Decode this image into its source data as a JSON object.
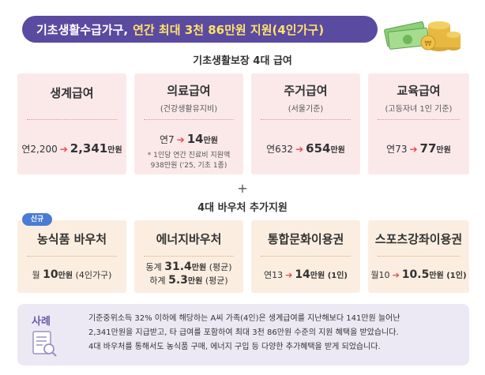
{
  "banner": {
    "title_main": "기초생활수급가구,",
    "title_highlight": "연간 최대 3천 86만원 지원(4인가구)"
  },
  "section1": {
    "title": "기초생활보장 4대 급여"
  },
  "benefits": [
    {
      "title": "생계급여",
      "subtitle": "",
      "from": "연2,200",
      "to": "2,341",
      "unit": "만원",
      "note": ""
    },
    {
      "title": "의료급여",
      "subtitle": "(건강생활유지비)",
      "from": "연7",
      "to": "14",
      "unit": "만원",
      "note_line1": "* 1인당 연간 진료비 지원액",
      "note_line2": "938만원 ('25, 기초 1종)"
    },
    {
      "title": "주거급여",
      "subtitle": "(서울기준)",
      "from": "연632",
      "to": "654",
      "unit": "만원",
      "note": ""
    },
    {
      "title": "교육급여",
      "subtitle": "(고등자녀 1인 기준)",
      "from": "연73",
      "to": "77",
      "unit": "만원",
      "note": ""
    }
  ],
  "plus_sign": "+",
  "section2": {
    "title": "4대 바우처 추가지원"
  },
  "new_badge": "신규",
  "vouchers": [
    {
      "title": "농식품 바우처",
      "line_prefix": "월",
      "value": "10",
      "unit": "만원",
      "suffix": "(4인가구)"
    },
    {
      "title": "에너지바우처",
      "line1_prefix": "동계",
      "line1_value": "31.4",
      "line1_unit": "만원",
      "line1_suffix": "(평균)",
      "line2_prefix": "하계",
      "line2_value": "5.3",
      "line2_unit": "만원",
      "line2_suffix": "(평균)"
    },
    {
      "title": "통합문화이용권",
      "from": "연13",
      "to": "14",
      "unit": "만원",
      "suffix": "(1인)"
    },
    {
      "title": "스포츠강좌이용권",
      "from": "월10",
      "to": "10.5",
      "unit": "만원",
      "suffix": "(1인)"
    }
  ],
  "example": {
    "label": "사례",
    "line1": "기준중위소득 32% 이하에 해당하는 A씨 가족(4인)은 생계급여를 지난해보다 141만원 늘어난",
    "line2": "2,341만원을 지급받고, 타 급여를 포함하여 최대 3천 86만원 수준의 지원 혜택을 받았습니다.",
    "line3": "4대 바우처를 통해서도 농식품 구매, 에너지 구입 등 다양한 추가혜택을 받게 되었습니다."
  },
  "icons": {
    "coins": "coins-money-icon",
    "document": "document-search-icon",
    "arrow": "arrow-right-icon"
  },
  "colors": {
    "banner": "#5a4aa0",
    "highlight": "#ffe36a",
    "arrow": "#e5484d",
    "pink_card": "#fbe9ea",
    "peach_card": "#fbeee0",
    "badge": "#4a7bd6",
    "example_bg": "#ece9f5"
  }
}
